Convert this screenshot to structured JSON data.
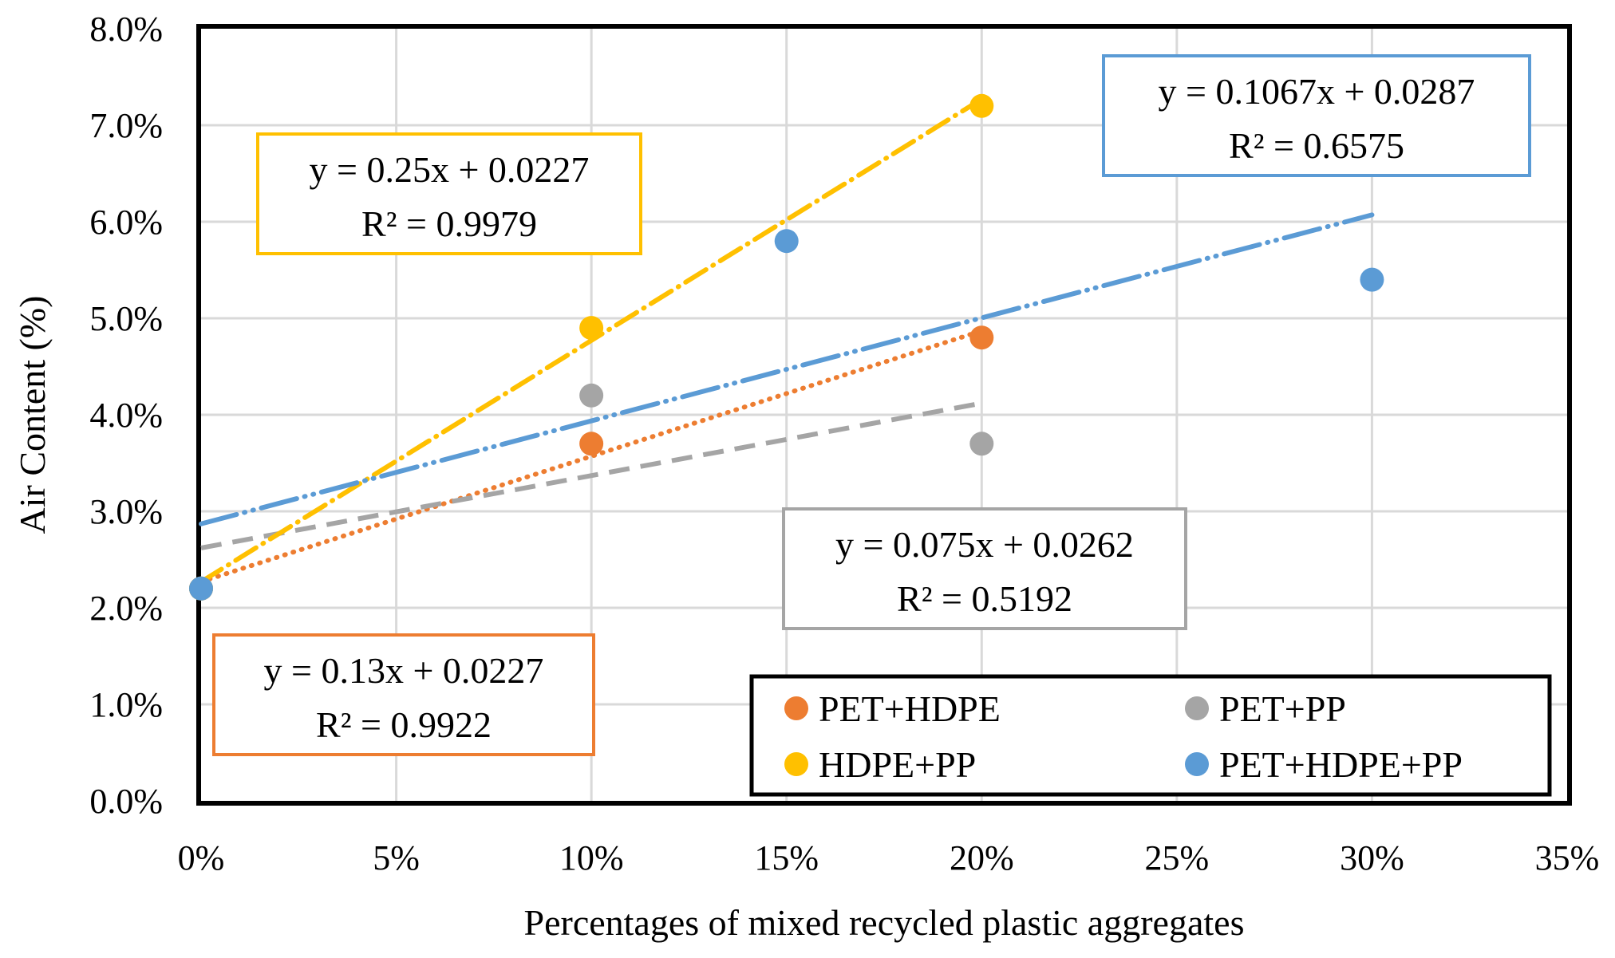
{
  "chart_data": {
    "type": "scatter",
    "title": "",
    "xlabel": "Percentages of mixed recycled plastic aggregates",
    "ylabel": "Air Content (%)",
    "xlim": [
      0,
      0.35
    ],
    "ylim": [
      0,
      0.08
    ],
    "x_ticks": [
      0,
      0.05,
      0.1,
      0.15,
      0.2,
      0.25,
      0.3,
      0.35
    ],
    "x_tick_labels": [
      "0%",
      "5%",
      "10%",
      "15%",
      "20%",
      "25%",
      "30%",
      "35%"
    ],
    "y_ticks": [
      0,
      0.01,
      0.02,
      0.03,
      0.04,
      0.05,
      0.06,
      0.07,
      0.08
    ],
    "y_tick_labels": [
      "0.0%",
      "1.0%",
      "2.0%",
      "3.0%",
      "4.0%",
      "5.0%",
      "6.0%",
      "7.0%",
      "8.0%"
    ],
    "grid": true,
    "legend_position": "bottom-right",
    "series": [
      {
        "name": "PET+HDPE",
        "color": "#ED7D31",
        "trendline_style": "dotted",
        "points": [
          {
            "x": 0,
            "y": 0.022
          },
          {
            "x": 0.1,
            "y": 0.037
          },
          {
            "x": 0.2,
            "y": 0.048
          }
        ],
        "trendline": {
          "slope": 0.13,
          "intercept": 0.0227,
          "x_range": [
            0,
            0.2
          ]
        },
        "equation": "y = 0.13x + 0.0227",
        "r_squared": "R² = 0.9922"
      },
      {
        "name": "PET+PP",
        "color": "#A5A5A5",
        "trendline_style": "dashed",
        "points": [
          {
            "x": 0,
            "y": 0.022
          },
          {
            "x": 0.1,
            "y": 0.042
          },
          {
            "x": 0.2,
            "y": 0.037
          }
        ],
        "trendline": {
          "slope": 0.075,
          "intercept": 0.0262,
          "x_range": [
            0,
            0.2
          ]
        },
        "equation": "y = 0.075x + 0.0262",
        "r_squared": "R² = 0.5192"
      },
      {
        "name": "HDPE+PP",
        "color": "#FFC000",
        "trendline_style": "dash-dot",
        "points": [
          {
            "x": 0,
            "y": 0.022
          },
          {
            "x": 0.1,
            "y": 0.049
          },
          {
            "x": 0.2,
            "y": 0.072
          }
        ],
        "trendline": {
          "slope": 0.25,
          "intercept": 0.0227,
          "x_range": [
            0,
            0.2
          ]
        },
        "equation": "y = 0.25x + 0.0227",
        "r_squared": "R² = 0.9979"
      },
      {
        "name": "PET+HDPE+PP",
        "color": "#5B9BD5",
        "trendline_style": "long-dash-dot-dot",
        "points": [
          {
            "x": 0,
            "y": 0.022
          },
          {
            "x": 0.15,
            "y": 0.058
          },
          {
            "x": 0.3,
            "y": 0.054
          }
        ],
        "trendline": {
          "slope": 0.1067,
          "intercept": 0.0287,
          "x_range": [
            0,
            0.3
          ]
        },
        "equation": "y = 0.1067x + 0.0287",
        "r_squared": "R² = 0.6575"
      }
    ]
  }
}
